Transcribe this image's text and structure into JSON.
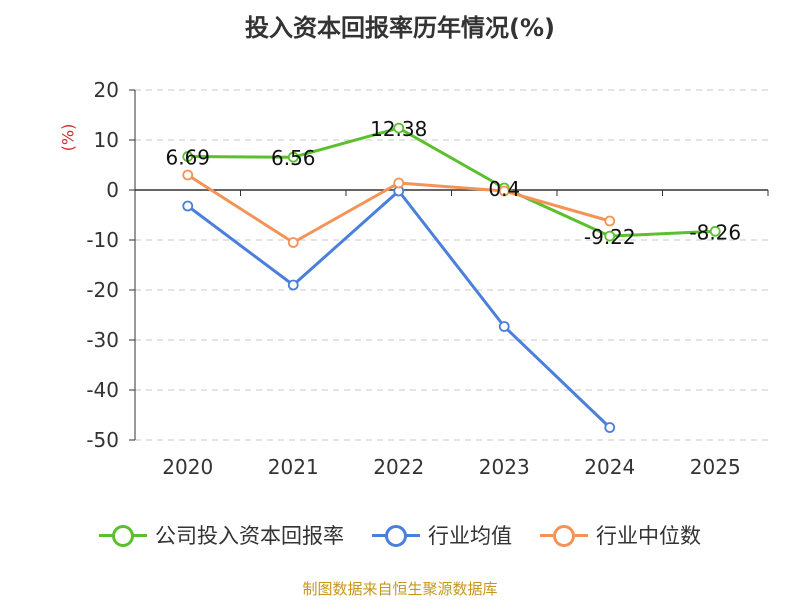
{
  "title": "投入资本回报率历年情况(%)",
  "unit_label": "(%)",
  "source": "制图数据来自恒生聚源数据库",
  "chart_data": {
    "type": "line",
    "title": "投入资本回报率历年情况(%)",
    "xlabel": "",
    "ylabel": "(%)",
    "categories": [
      "2020",
      "2021",
      "2022",
      "2023",
      "2024",
      "2025"
    ],
    "ylim": [
      -50,
      20
    ],
    "yticks": [
      20,
      10,
      0,
      -10,
      -20,
      -30,
      -40,
      -50
    ],
    "grid": true,
    "legend_position": "bottom",
    "series": [
      {
        "name": "公司投入资本回报率",
        "color": "#5cc02e",
        "values": [
          6.69,
          6.56,
          12.38,
          0.4,
          -9.22,
          -8.26
        ],
        "labels": [
          "6.69",
          "6.56",
          "12.38",
          "0.4",
          "-9.22",
          "-8.26"
        ]
      },
      {
        "name": "行业均值",
        "color": "#4a7fdc",
        "values": [
          -3.2,
          -19.0,
          -0.2,
          -27.3,
          -47.5,
          null
        ]
      },
      {
        "name": "行业中位数",
        "color": "#f59357",
        "values": [
          3.0,
          -10.5,
          1.4,
          -0.2,
          -6.2,
          null
        ]
      }
    ]
  }
}
